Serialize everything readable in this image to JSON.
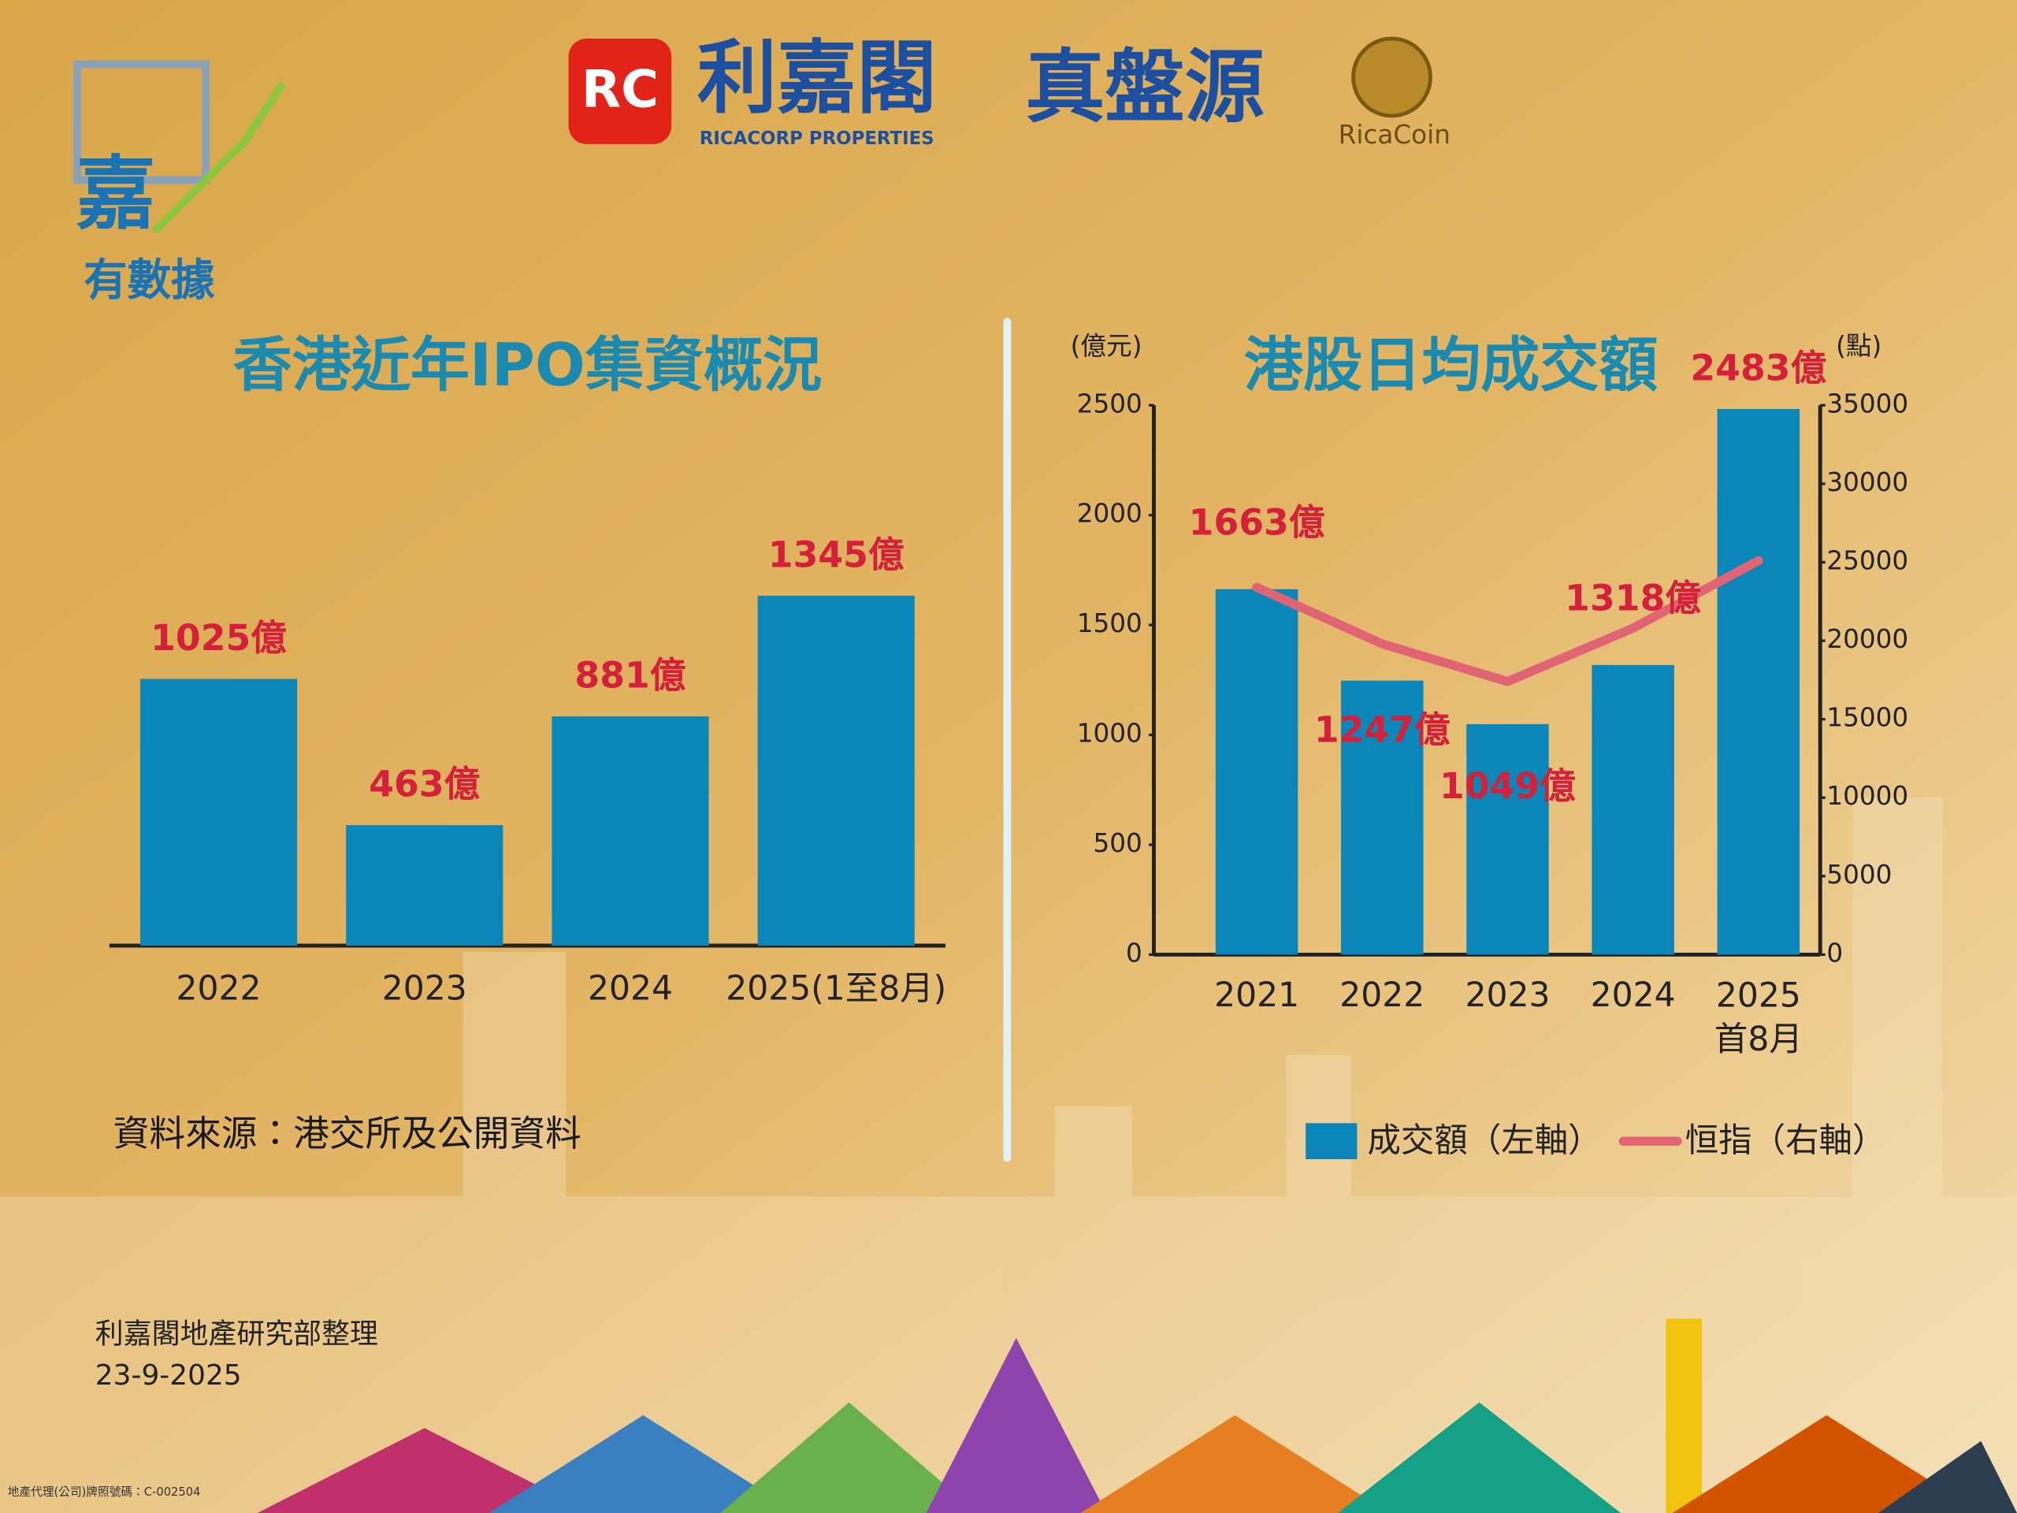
{
  "header": {
    "brand_mark": "RC",
    "brand_zh": "利嘉閣",
    "brand_en": "RICACORP PROPERTIES",
    "product": "真盤源",
    "coin": "RicaCoin"
  },
  "logo": {
    "title": "嘉",
    "subtitle": "有數據"
  },
  "source": "資料來源：港交所及公開資料",
  "footer": {
    "credit": "利嘉閣地產研究部整理",
    "date": "23-9-2025",
    "license": "地產代理(公司)牌照號碼：C-002504"
  },
  "chart_data": [
    {
      "type": "bar",
      "title": "香港近年IPO集資概況",
      "categories": [
        "2022",
        "2023",
        "2024",
        "2025(1至8月)"
      ],
      "values": [
        1025,
        463,
        881,
        1345
      ],
      "value_labels": [
        "1025億",
        "463億",
        "881億",
        "1345億"
      ],
      "color": "#0a86b8"
    },
    {
      "type": "bar_line",
      "title": "港股日均成交額",
      "y_label": "(億元)",
      "y2_label": "(點)",
      "categories": [
        "2021",
        "2022",
        "2023",
        "2024",
        "2025\n首8月"
      ],
      "series": [
        {
          "name": "成交額（左軸）",
          "color": "#0a86b8",
          "type": "bar",
          "values": [
            1663,
            1247,
            1049,
            1318,
            2483
          ],
          "value_labels": [
            "1663億",
            "1247億",
            "1049億",
            "1318億",
            "2483億"
          ]
        },
        {
          "name": "恒指（右軸）",
          "color": "#e06474",
          "type": "line",
          "axis": "y2",
          "values": [
            23400,
            19800,
            17400,
            20800,
            25100
          ]
        }
      ],
      "ylim": [
        0,
        2500
      ],
      "yticks": [
        0,
        500,
        1000,
        1500,
        2000,
        2500
      ],
      "y2lim": [
        0,
        35000
      ],
      "y2ticks": [
        0,
        5000,
        10000,
        15000,
        20000,
        25000,
        30000,
        35000
      ]
    }
  ]
}
